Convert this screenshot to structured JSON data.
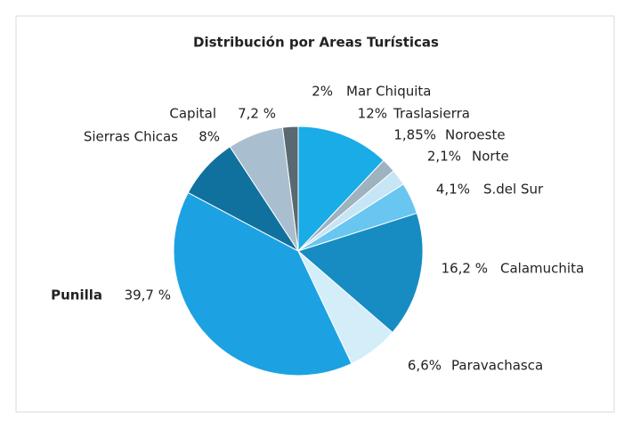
{
  "chart_data": {
    "type": "pie",
    "title": "Distribución por Areas Turísticas",
    "categories": [
      "Traslasierra",
      "Noroeste",
      "Norte",
      "S.del Sur",
      "Calamuchita",
      "Paravachasca",
      "Punilla",
      "Sierras Chicas",
      "Capital",
      "Mar Chiquita"
    ],
    "values": [
      12,
      1.85,
      2.1,
      4.1,
      16.2,
      6.6,
      39.7,
      8,
      7.2,
      2
    ],
    "value_labels": [
      "12%",
      "1,85%",
      "2,1%",
      "4,1%",
      "16,2 %",
      "6,6%",
      "39,7 %",
      "8%",
      "7,2 %",
      "2%"
    ],
    "colors": [
      "#19ace6",
      "#9fb2c0",
      "#c6e5f5",
      "#68c6f0",
      "#178cc2",
      "#d3edf9",
      "#1ca2e2",
      "#10719f",
      "#a9bfcf",
      "#5a6872"
    ]
  }
}
